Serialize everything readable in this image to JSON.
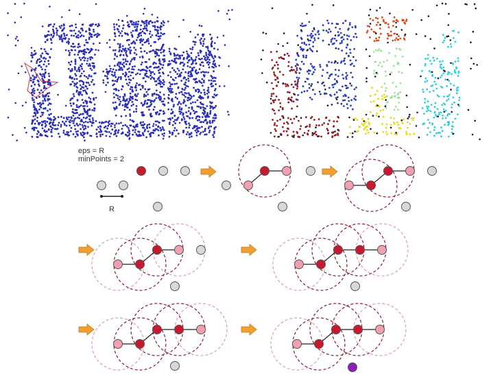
{
  "params": {
    "eps_label": "eps = R",
    "minpoints_label": "minPoints = 2",
    "radius_label": "R"
  },
  "panels": {
    "left": {
      "name": "raw-points",
      "description_color": "#2a2fb8"
    },
    "right": {
      "name": "clustered-points",
      "cluster_colors": {
        "red": "#9a1a1a",
        "blue": "#2a3fc0",
        "orange": "#e0471c",
        "green": "#9ee39a",
        "yellow": "#e6d81a",
        "cyan": "#2fd0dc",
        "noise": "#1a1a3a"
      }
    }
  },
  "colors": {
    "core": "#c8192e",
    "border": "#f0a0b0",
    "unvisited": "#d8d8d8",
    "noise": "#8a20b8",
    "arrow": "#f0a030",
    "circle_dark": "#8a1a2a",
    "circle_light": "#d8a0a8"
  }
}
